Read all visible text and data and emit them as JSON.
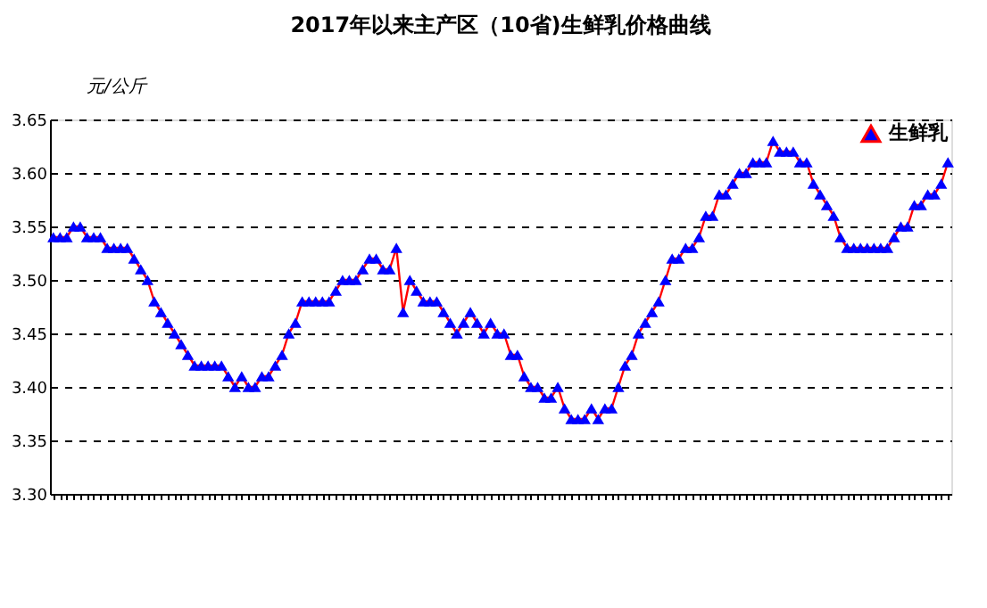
{
  "chart_data": {
    "type": "line",
    "title": "2017年以来主产区（10省)生鲜乳价格曲线",
    "ylabel": "元/公斤",
    "categories": [
      null,
      null,
      null,
      null,
      null,
      null,
      null,
      null,
      null,
      null,
      null,
      null,
      null,
      null,
      null,
      null,
      null,
      null,
      null,
      null,
      null,
      null,
      null,
      null,
      null,
      null,
      null,
      null,
      null,
      null,
      null,
      null,
      null,
      null,
      null,
      null,
      null,
      null,
      null,
      null,
      null,
      null,
      null,
      null,
      null,
      null,
      null,
      null,
      null,
      null,
      null,
      null,
      null,
      null,
      null,
      null,
      null,
      null,
      null,
      null,
      null,
      null,
      null,
      null,
      null,
      null,
      null,
      null,
      null,
      null,
      null,
      null,
      null,
      null,
      null,
      null,
      null,
      null,
      null,
      null,
      null,
      null,
      null,
      null,
      null,
      null,
      null,
      null,
      null,
      null,
      null,
      null,
      null,
      null,
      null,
      null,
      null,
      null,
      null,
      null,
      null,
      null,
      null,
      null,
      null,
      null,
      null,
      null,
      null,
      null,
      null,
      null,
      null,
      null,
      null,
      null,
      null,
      null,
      null,
      null,
      null,
      null,
      null,
      null,
      null,
      null,
      null,
      null,
      null,
      null,
      null,
      null,
      null,
      null
    ],
    "series": [
      {
        "name": "生鲜乳",
        "color": "#0000ff",
        "values": [
          3.54,
          3.54,
          3.54,
          3.55,
          3.55,
          3.54,
          3.54,
          3.54,
          3.53,
          3.53,
          3.53,
          3.53,
          3.52,
          3.51,
          3.5,
          3.48,
          3.47,
          3.46,
          3.45,
          3.44,
          3.43,
          3.42,
          3.42,
          3.42,
          3.42,
          3.42,
          3.41,
          3.4,
          3.41,
          3.4,
          3.4,
          3.41,
          3.41,
          3.42,
          3.43,
          3.45,
          3.46,
          3.48,
          3.48,
          3.48,
          3.48,
          3.48,
          3.49,
          3.5,
          3.5,
          3.5,
          3.51,
          3.52,
          3.52,
          3.51,
          3.51,
          3.53,
          3.47,
          3.5,
          3.49,
          3.48,
          3.48,
          3.48,
          3.47,
          3.46,
          3.45,
          3.46,
          3.47,
          3.46,
          3.45,
          3.46,
          3.45,
          3.45,
          3.43,
          3.43,
          3.41,
          3.4,
          3.4,
          3.39,
          3.39,
          3.4,
          3.38,
          3.37,
          3.37,
          3.37,
          3.38,
          3.37,
          3.38,
          3.38,
          3.4,
          3.42,
          3.43,
          3.45,
          3.46,
          3.47,
          3.48,
          3.5,
          3.52,
          3.52,
          3.53,
          3.53,
          3.54,
          3.56,
          3.56,
          3.58,
          3.58,
          3.59,
          3.6,
          3.6,
          3.61,
          3.61,
          3.61,
          3.63,
          3.62,
          3.62,
          3.62,
          3.61,
          3.61,
          3.59,
          3.58,
          3.57,
          3.56,
          3.54,
          3.53,
          3.53,
          3.53,
          3.53,
          3.53,
          3.53,
          3.53,
          3.54,
          3.55,
          3.55,
          3.57,
          3.57,
          3.58,
          3.58,
          3.59,
          3.61
        ]
      }
    ],
    "ylim": [
      3.3,
      3.65
    ],
    "yticks": [
      {
        "value": 3.3,
        "label": "3.30"
      },
      {
        "value": 3.35,
        "label": "3.35"
      },
      {
        "value": 3.4,
        "label": "3.40"
      },
      {
        "value": 3.45,
        "label": "3.45"
      },
      {
        "value": 3.5,
        "label": "3.50"
      },
      {
        "value": 3.55,
        "label": "3.55"
      },
      {
        "value": 3.6,
        "label": "3.60"
      },
      {
        "value": 3.65,
        "label": "3.65"
      }
    ],
    "grid": "y",
    "legend": "top right",
    "marker": "triangle",
    "line_style": "solid",
    "tick_labels": "y"
  }
}
